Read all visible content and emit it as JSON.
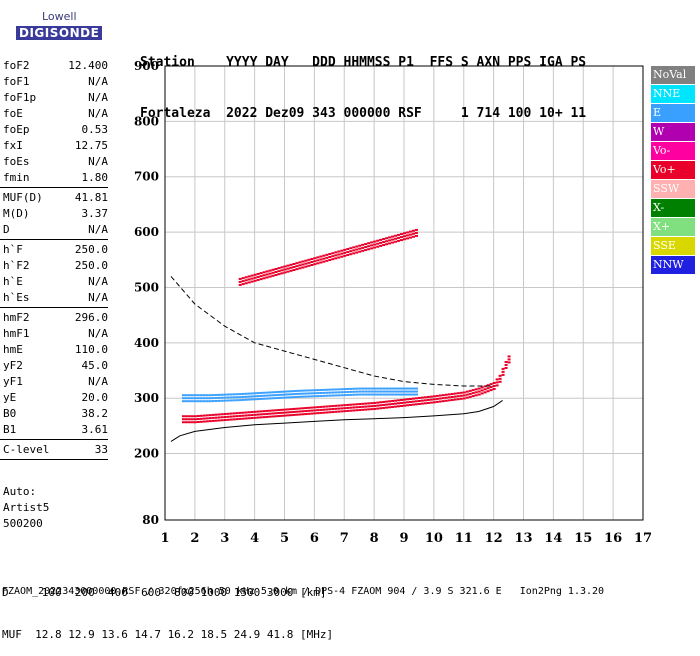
{
  "logo": {
    "line1": "Lowell",
    "line2": "DIGISONDE"
  },
  "header": {
    "line1": "Station    YYYY DAY   DDD HHMMSS P1  FFS S AXN PPS IGA PS",
    "line2": "Fortaleza  2022 Dez09 343 000000 RSF     1 714 100 10+ 11"
  },
  "params": [
    [
      {
        "k": "foF2",
        "v": "12.400"
      },
      {
        "k": "foF1",
        "v": "N/A"
      },
      {
        "k": "foF1p",
        "v": "N/A"
      },
      {
        "k": "foE",
        "v": "N/A"
      },
      {
        "k": "foEp",
        "v": "0.53"
      },
      {
        "k": "fxI",
        "v": "12.75"
      },
      {
        "k": "foEs",
        "v": "N/A"
      },
      {
        "k": "fmin",
        "v": "1.80"
      }
    ],
    [
      {
        "k": "MUF(D)",
        "v": "41.81"
      },
      {
        "k": "M(D)",
        "v": "3.37"
      },
      {
        "k": "D",
        "v": "N/A"
      }
    ],
    [
      {
        "k": "h`F",
        "v": "250.0"
      },
      {
        "k": "h`F2",
        "v": "250.0"
      },
      {
        "k": "h`E",
        "v": "N/A"
      },
      {
        "k": "h`Es",
        "v": "N/A"
      }
    ],
    [
      {
        "k": "hmF2",
        "v": "296.0"
      },
      {
        "k": "hmF1",
        "v": "N/A"
      },
      {
        "k": "hmE",
        "v": "110.0"
      },
      {
        "k": "yF2",
        "v": "45.0"
      },
      {
        "k": "yF1",
        "v": "N/A"
      },
      {
        "k": "yE",
        "v": "20.0"
      },
      {
        "k": "B0",
        "v": "38.2"
      },
      {
        "k": "B1",
        "v": "3.61"
      }
    ],
    [
      {
        "k": "C-level",
        "v": "33"
      }
    ]
  ],
  "auto": {
    "line1": "Auto:",
    "line2": "Artist5",
    "line3": "500200"
  },
  "legend": [
    {
      "label": "NoVal",
      "color": "#808080"
    },
    {
      "label": "NNE",
      "color": "#00e5ff"
    },
    {
      "label": "E",
      "color": "#3aa0ff"
    },
    {
      "label": "W",
      "color": "#b000b0"
    },
    {
      "label": "Vo-",
      "color": "#ff00a0"
    },
    {
      "label": "Vo+",
      "color": "#e8002a"
    },
    {
      "label": "SSW",
      "color": "#ffb0b0"
    },
    {
      "label": "X-",
      "color": "#008000"
    },
    {
      "label": "X+",
      "color": "#80e080"
    },
    {
      "label": "SSE",
      "color": "#d8d800"
    },
    {
      "label": "NNW",
      "color": "#2020e0"
    }
  ],
  "footer": {
    "line1": "D     100  200  400  600  800 1000 1500 3000 [km]",
    "line2": "MUF  12.8 12.9 13.6 14.7 16.2 18.5 24.9 41.8 [MHz]",
    "line3": "FZAOM_2022343000000.RSF / 320fx256h 50 kHz 5.0 km / DPS-4 FZAOM 904 / 3.9 S 321.6 E   Ion2Png 1.3.20"
  },
  "chart_data": {
    "type": "scatter",
    "xlim": [
      1,
      17
    ],
    "ylim": [
      80,
      900
    ],
    "xticks": [
      1,
      2,
      3,
      4,
      5,
      6,
      7,
      8,
      9,
      10,
      11,
      12,
      13,
      14,
      15,
      16,
      17
    ],
    "yticks": [
      80,
      200,
      300,
      400,
      500,
      600,
      700,
      800,
      900
    ],
    "grid": true,
    "traces": [
      {
        "name": "F2 trace",
        "color": "#e8002a",
        "points": [
          [
            1.6,
            262
          ],
          [
            2.0,
            262
          ],
          [
            3.0,
            266
          ],
          [
            4.0,
            270
          ],
          [
            5.0,
            274
          ],
          [
            6.0,
            278
          ],
          [
            7.0,
            282
          ],
          [
            8.0,
            286
          ],
          [
            9.0,
            292
          ],
          [
            10.0,
            298
          ],
          [
            11.0,
            305
          ],
          [
            11.5,
            312
          ],
          [
            12.0,
            322
          ],
          [
            12.2,
            335
          ],
          [
            12.4,
            360
          ],
          [
            12.6,
            380
          ]
        ]
      },
      {
        "name": "E spread",
        "color": "#3aa0ff",
        "points": [
          [
            1.6,
            300
          ],
          [
            2.5,
            300
          ],
          [
            3.5,
            302
          ],
          [
            4.5,
            305
          ],
          [
            5.5,
            308
          ],
          [
            6.5,
            310
          ],
          [
            7.5,
            312
          ],
          [
            8.5,
            312
          ],
          [
            9.5,
            312
          ]
        ]
      },
      {
        "name": "Second hop",
        "color": "#e8002a",
        "points": [
          [
            3.5,
            510
          ],
          [
            4.5,
            525
          ],
          [
            5.5,
            540
          ],
          [
            6.5,
            555
          ],
          [
            7.5,
            570
          ],
          [
            8.5,
            585
          ],
          [
            9.5,
            600
          ]
        ]
      }
    ],
    "profile_curve": [
      [
        1.2,
        222
      ],
      [
        1.5,
        232
      ],
      [
        2,
        240
      ],
      [
        3,
        247
      ],
      [
        4,
        252
      ],
      [
        5,
        255
      ],
      [
        6,
        258
      ],
      [
        7,
        261
      ],
      [
        8,
        263
      ],
      [
        9,
        265
      ],
      [
        10,
        268
      ],
      [
        11,
        272
      ],
      [
        11.5,
        276
      ],
      [
        12,
        285
      ],
      [
        12.3,
        296
      ]
    ],
    "dashed_curve": [
      [
        1.2,
        520
      ],
      [
        2,
        470
      ],
      [
        3,
        430
      ],
      [
        4,
        400
      ],
      [
        5,
        385
      ],
      [
        6,
        370
      ],
      [
        7,
        355
      ],
      [
        8,
        340
      ],
      [
        9,
        330
      ],
      [
        10,
        325
      ],
      [
        11,
        322
      ],
      [
        12,
        322
      ]
    ]
  }
}
